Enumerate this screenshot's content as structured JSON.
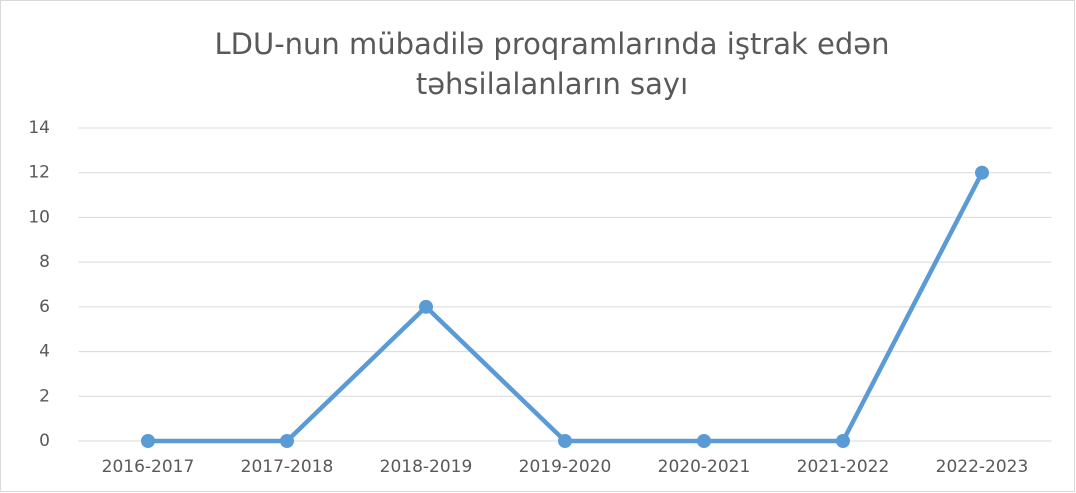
{
  "chart_data": {
    "type": "line",
    "title": [
      "LDU-nun mübadilə proqramlarında iştrak edən",
      "təhsilalanların sayı"
    ],
    "categories": [
      "2016-2017",
      "2017-2018",
      "2018-2019",
      "2019-2020",
      "2020-2021",
      "2021-2022",
      "2022-2023"
    ],
    "values": [
      0,
      0,
      6,
      0,
      0,
      0,
      12
    ],
    "color": "#5b9bd5",
    "ylim": [
      0,
      14
    ],
    "yticks": [
      0,
      2,
      4,
      6,
      8,
      10,
      12,
      14
    ],
    "grid": true
  }
}
